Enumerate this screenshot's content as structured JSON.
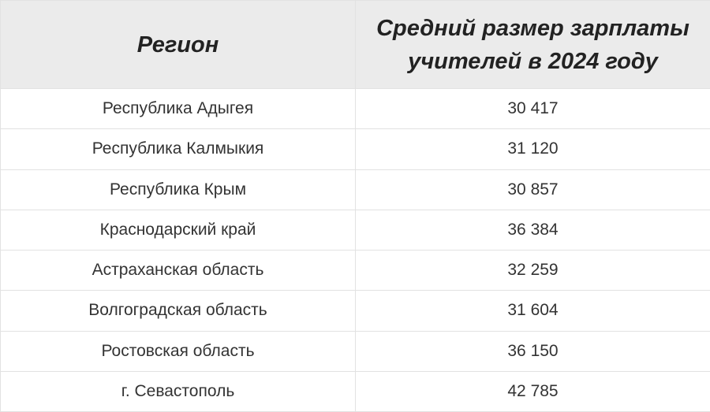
{
  "table": {
    "header": [
      "Регион",
      "Средний размер зарплаты учителей в 2024 году"
    ],
    "rows": [
      [
        "Республика Адыгея",
        "30 417"
      ],
      [
        "Республика Калмыкия",
        "31 120"
      ],
      [
        "Республика Крым",
        "30 857"
      ],
      [
        "Краснодарский край",
        "36 384"
      ],
      [
        "Астраханская область",
        "32 259"
      ],
      [
        "Волгоградская область",
        "31 604"
      ],
      [
        "Ростовская область",
        "36 150"
      ],
      [
        "г. Севастополь",
        "42 785"
      ]
    ]
  }
}
